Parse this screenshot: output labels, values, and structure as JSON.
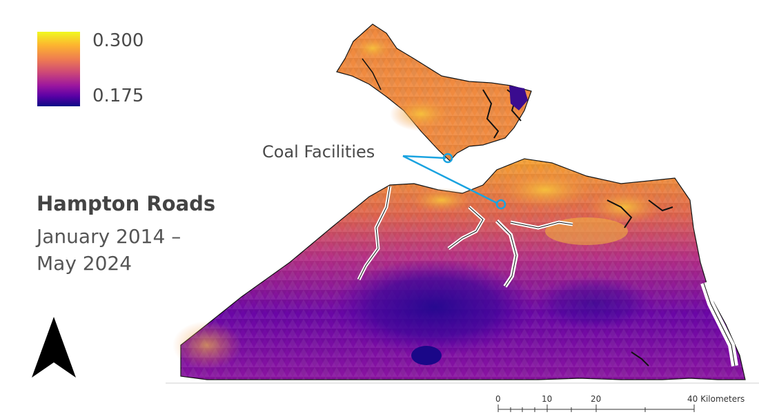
{
  "map": {
    "title": "Hampton Roads",
    "subtitle": "January 2014 – May 2024",
    "annotation": "Coal Facilities",
    "colors": {
      "ramp": [
        "#0d0887",
        "#5c01a6",
        "#9c179e",
        "#cc4778",
        "#ed7953",
        "#fdb42f",
        "#f0f921"
      ],
      "callout": "#1aa3e0",
      "outline": "#111111"
    }
  },
  "legend": {
    "max_label": "0.300",
    "min_label": "0.175",
    "max_value": 0.3,
    "min_value": 0.175
  },
  "north_arrow": {
    "icon": "north-arrow-icon"
  },
  "scale_bar": {
    "ticks": [
      "0",
      "10",
      "20",
      "40 Kilometers"
    ]
  }
}
